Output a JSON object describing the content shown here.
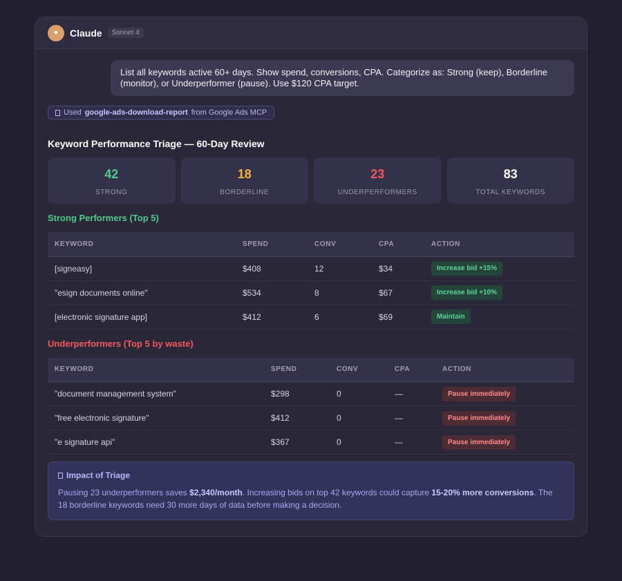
{
  "app": {
    "name": "Claude",
    "model": "Sonnet 4",
    "logo_glyph": "✦"
  },
  "user_message": "List all keywords active 60+ days. Show spend, conversions, CPA. Categorize as: Strong (keep), Borderline (monitor), or Underperformer (pause). Use $120 CPA target.",
  "tool": {
    "prefix": "Used",
    "name": "google-ads-download-report",
    "suffix": "from Google Ads MCP"
  },
  "report_title": "Keyword Performance Triage — 60-Day Review",
  "stats": [
    {
      "value": "42",
      "label": "STRONG",
      "color": "#4ecb8d"
    },
    {
      "value": "18",
      "label": "BORDERLINE",
      "color": "#f5b43a"
    },
    {
      "value": "23",
      "label": "UNDERPERFORMERS",
      "color": "#f1585e"
    },
    {
      "value": "83",
      "label": "TOTAL KEYWORDS",
      "color": "#ffffff"
    }
  ],
  "strong": {
    "title": "Strong Performers (Top 5)",
    "color": "#4ecb8d",
    "headers": [
      "KEYWORD",
      "SPEND",
      "CONV",
      "CPA",
      "ACTION"
    ],
    "rows": [
      {
        "keyword": "[signeasy]",
        "spend": "$408",
        "conv": "12",
        "cpa": "$34",
        "action": "Increase bid +15%"
      },
      {
        "keyword": "\"esign documents online\"",
        "spend": "$534",
        "conv": "8",
        "cpa": "$67",
        "action": "Increase bid +10%"
      },
      {
        "keyword": "[electronic signature app]",
        "spend": "$412",
        "conv": "6",
        "cpa": "$69",
        "action": "Maintain"
      }
    ]
  },
  "under": {
    "title": "Underperformers (Top 5 by waste)",
    "color": "#f1585e",
    "headers": [
      "KEYWORD",
      "SPEND",
      "CONV",
      "CPA",
      "ACTION"
    ],
    "rows": [
      {
        "keyword": "\"document management system\"",
        "spend": "$298",
        "conv": "0",
        "cpa": "—",
        "action": "Pause immediately"
      },
      {
        "keyword": "\"free electronic signature\"",
        "spend": "$412",
        "conv": "0",
        "cpa": "—",
        "action": "Pause immediately"
      },
      {
        "keyword": "\"e signature api\"",
        "spend": "$367",
        "conv": "0",
        "cpa": "—",
        "action": "Pause immediately"
      }
    ]
  },
  "impact": {
    "title": "Impact of Triage",
    "text_1": "Pausing 23 underperformers saves ",
    "bold_1": "$2,340/month",
    "text_2": ". Increasing bids on top 42 keywords could capture ",
    "bold_2": "15-20% more conversions",
    "text_3": ". The 18 borderline keywords need 30 more days of data before making a decision."
  }
}
